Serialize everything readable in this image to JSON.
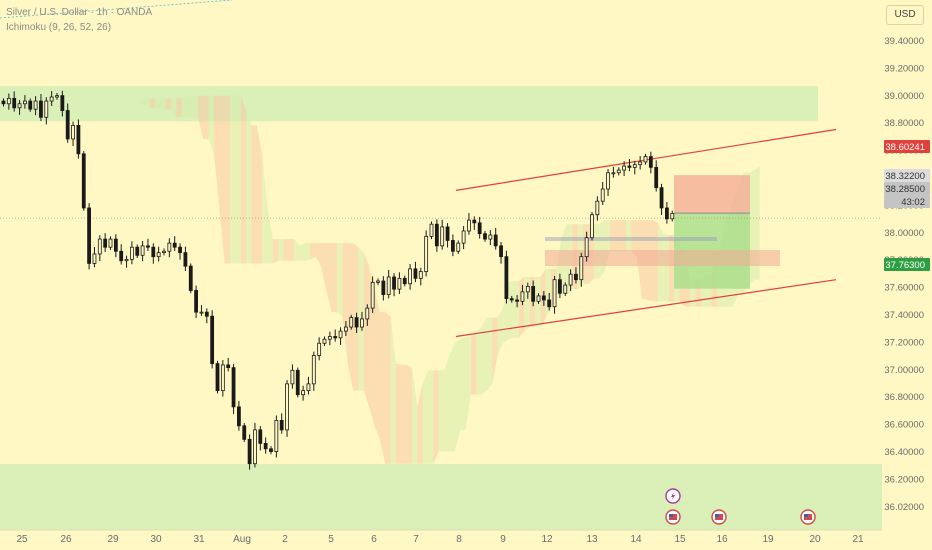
{
  "legend": {
    "symbol": "Silver / U.S. Dollar · 1h · OANDA",
    "indicator": "Ichimoku (9, 26, 52, 26)"
  },
  "currency_button": "USD",
  "colors": {
    "background": "#fff8c4",
    "candle": "#1a1a1a",
    "channel": "#e0413a",
    "cloud_green": "#d5ecaa",
    "cloud_red": "#f7c9a4",
    "zone_green": "#d4efb6",
    "target_green": "#a8dd8a",
    "stop_red": "#f3a995"
  },
  "chart_data": {
    "type": "candlestick",
    "y_ticks": [
      "39.40000",
      "39.20000",
      "39.00000",
      "38.80000",
      "38.60000",
      "38.40000",
      "38.20000",
      "38.00000",
      "37.80000",
      "37.60000",
      "37.40000",
      "37.20000",
      "37.00000",
      "36.80000",
      "36.60000",
      "36.40000",
      "36.20000",
      "36.02000"
    ],
    "ylim": [
      35.98,
      39.52
    ],
    "x_ticks": [
      "25",
      "26",
      "29",
      "30",
      "31",
      "Aug",
      "2",
      "5",
      "6",
      "7",
      "8",
      "9",
      "12",
      "13",
      "14",
      "15",
      "16",
      "19",
      "20",
      "21"
    ],
    "hourly_closes": [
      39.13,
      39.17,
      39.1,
      39.13,
      39.15,
      39.09,
      39.15,
      39.03,
      39.15,
      39.18,
      39.19,
      39.08,
      38.87,
      38.97,
      38.76,
      38.36,
      37.95,
      38.02,
      38.13,
      38.07,
      38.13,
      38.04,
      37.97,
      37.98,
      38.07,
      38.01,
      38.08,
      38.07,
      38.0,
      38.03,
      38.04,
      38.1,
      38.07,
      38.03,
      37.93,
      37.75,
      37.59,
      37.59,
      37.56,
      37.21,
      37.01,
      37.2,
      37.18,
      36.89,
      36.75,
      36.65,
      36.47,
      36.72,
      36.62,
      36.58,
      36.56,
      36.79,
      36.72,
      37.06,
      37.16,
      36.98,
      37.01,
      37.06,
      37.27,
      37.36,
      37.39,
      37.41,
      37.4,
      37.45,
      37.48,
      37.55,
      37.48,
      37.54,
      37.62,
      37.81,
      37.82,
      37.72,
      37.85,
      37.76,
      37.84,
      37.8,
      37.91,
      37.84,
      37.89,
      38.15,
      38.24,
      38.08,
      38.22,
      38.12,
      38.04,
      38.1,
      38.19,
      38.27,
      38.25,
      38.17,
      38.13,
      38.16,
      38.08,
      38.0,
      37.69,
      37.68,
      37.67,
      37.74,
      37.78,
      37.67,
      37.71,
      37.68,
      37.63,
      37.83,
      37.73,
      37.79,
      37.87,
      37.83,
      38.0,
      38.14,
      38.31,
      38.41,
      38.5,
      38.62,
      38.62,
      38.64,
      38.67,
      38.66,
      38.68,
      38.7,
      38.74,
      38.66,
      38.51,
      38.36,
      38.28,
      38.32
    ],
    "annotations": {
      "channel_upper": {
        "from": 38.49,
        "to": 38.94
      },
      "channel_lower": {
        "from": 37.41,
        "to": 37.83
      },
      "resistance_zone": [
        39.0,
        39.26
      ],
      "support_zone": [
        35.96,
        36.36
      ],
      "position": {
        "entry": 38.322,
        "stop": 38.60241,
        "target": 37.763
      }
    },
    "price_labels": [
      {
        "value": "38.60241",
        "color": "#e0413a"
      },
      {
        "value": "38.32200",
        "color": "#dcdcdc"
      },
      {
        "value": "38.28500",
        "color": "#c4c4c4"
      },
      {
        "value": "43:02",
        "color": "#c4c4c4"
      },
      {
        "value": "37.76300",
        "color": "#2e9e43"
      }
    ],
    "event_markers": [
      "lightning",
      "us-flag",
      "us-flag",
      "us-flag"
    ]
  }
}
